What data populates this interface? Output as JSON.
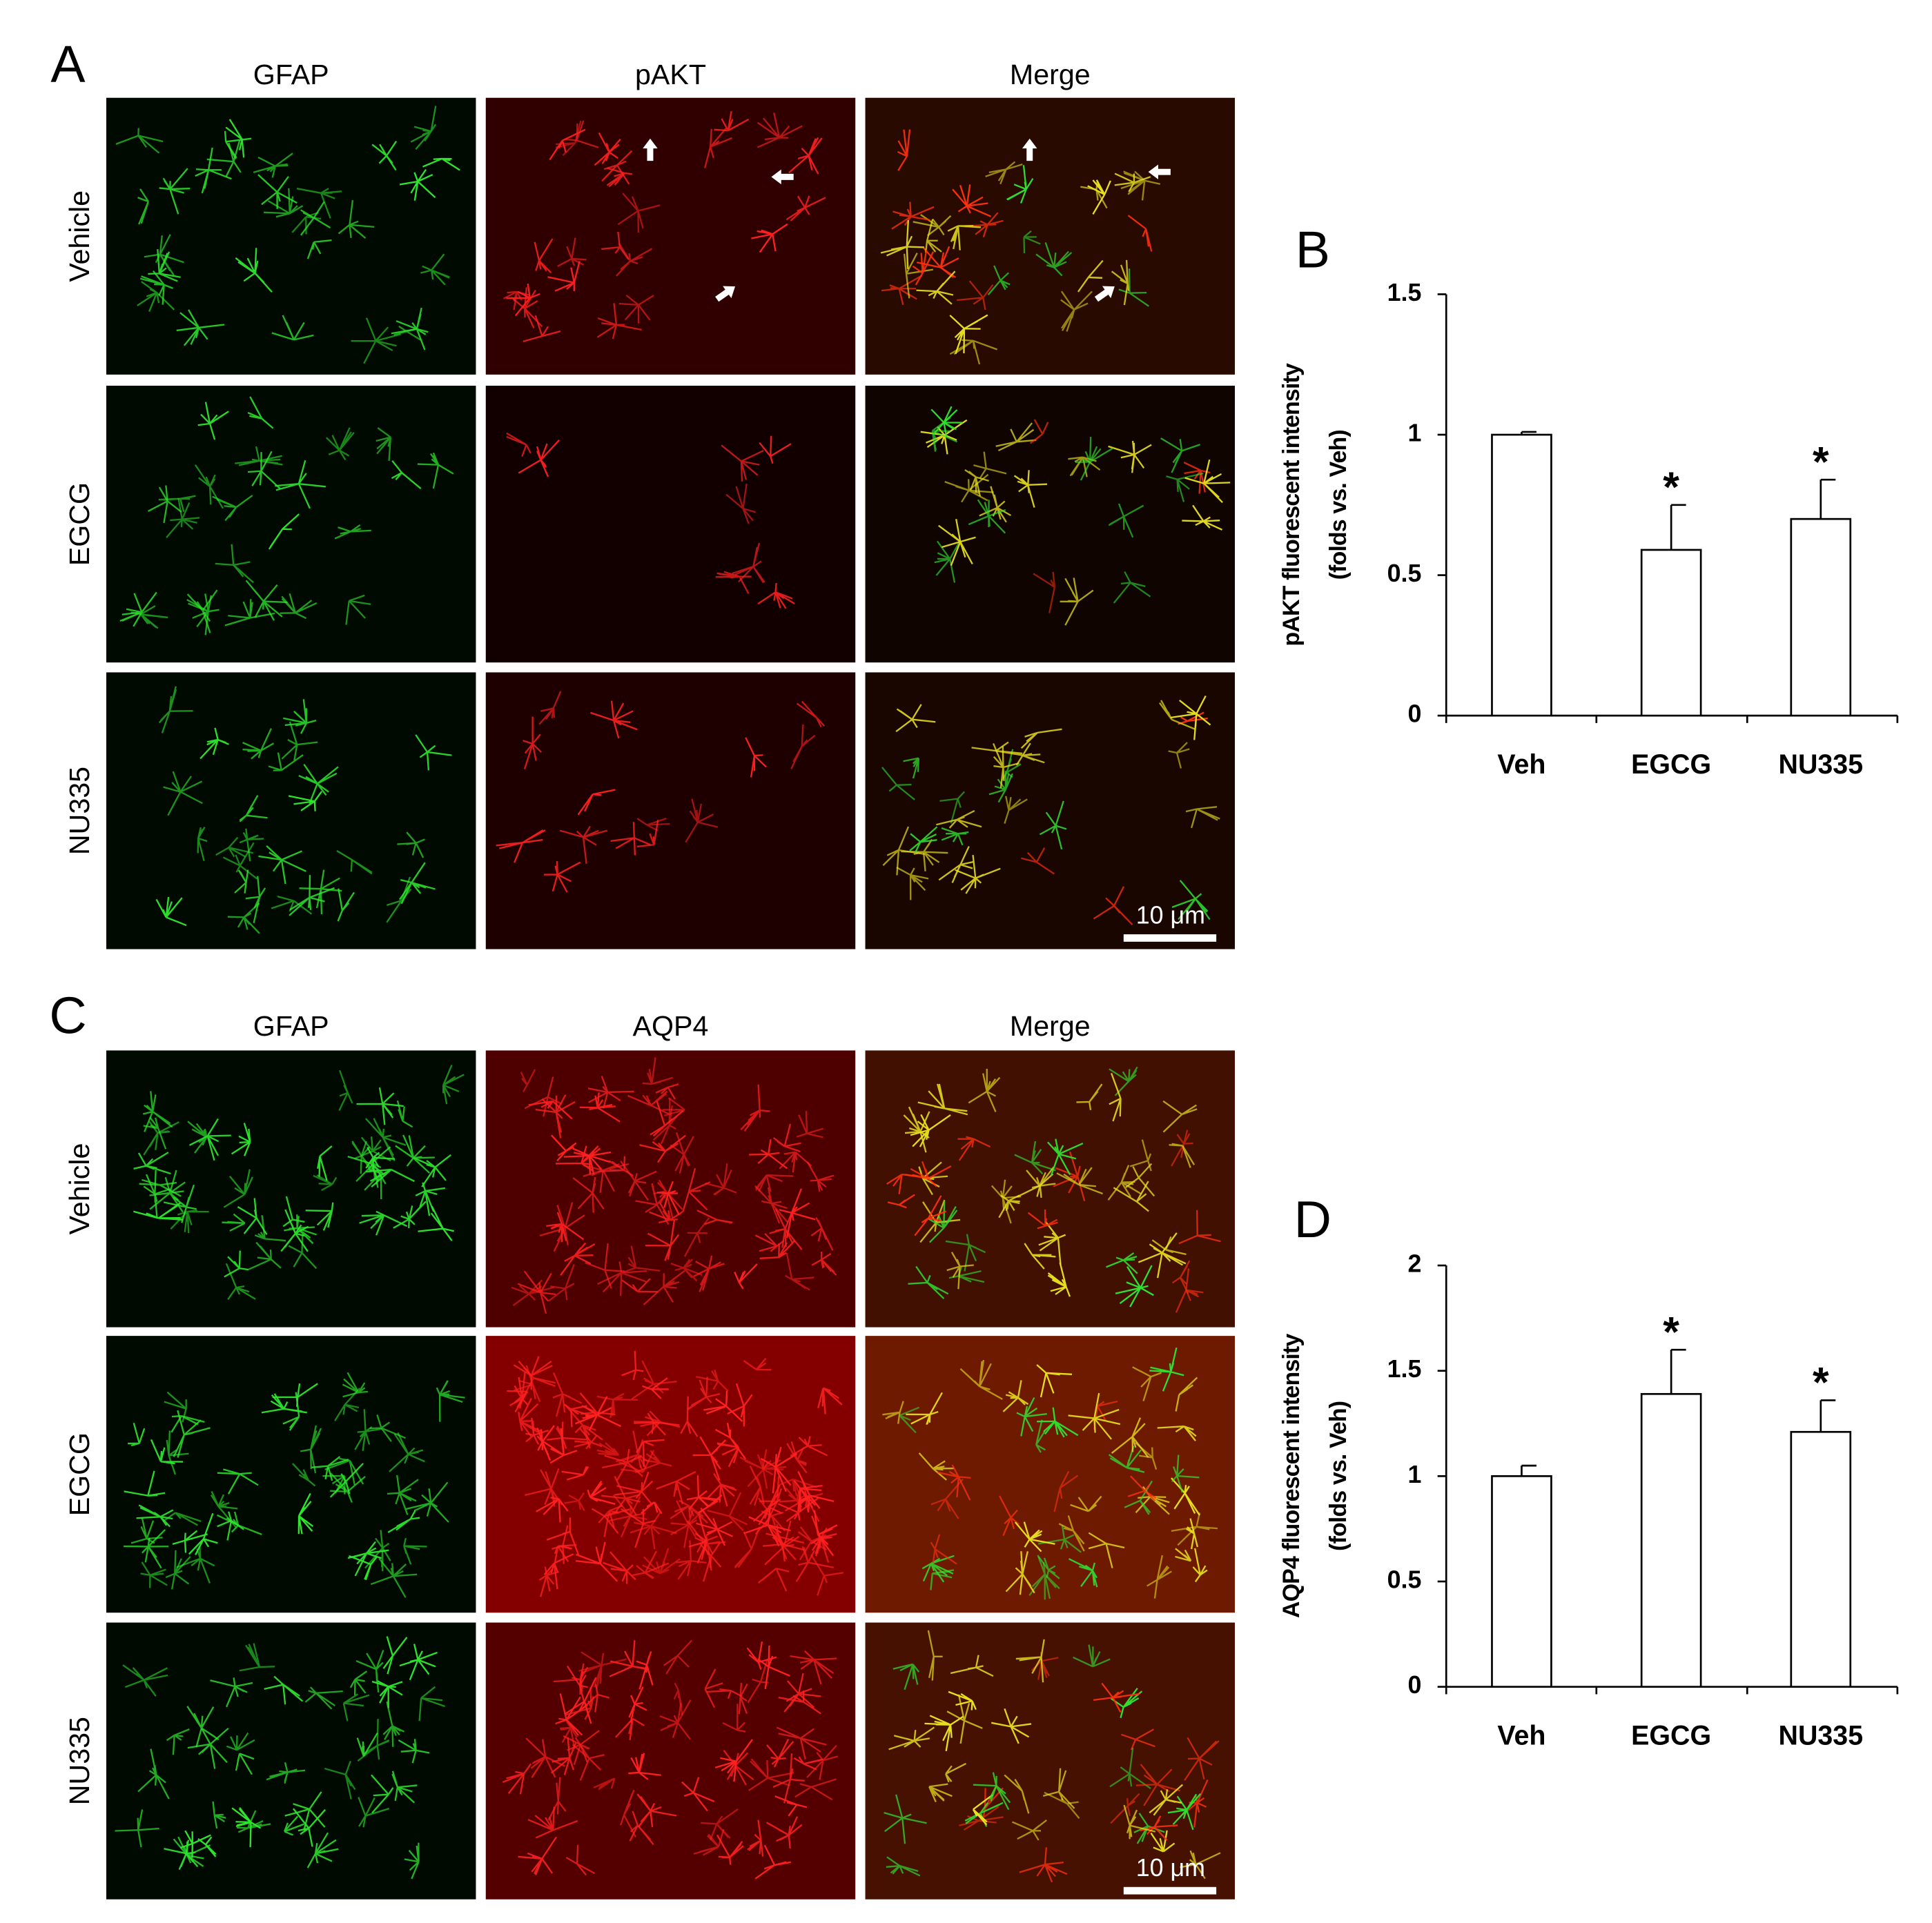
{
  "panels": {
    "A": {
      "label": "A",
      "columns": [
        "GFAP",
        "pAKT",
        "Merge"
      ],
      "rows": [
        "Vehicle",
        "EGCG",
        "NU335"
      ],
      "scale_bar": "10 μm"
    },
    "C": {
      "label": "C",
      "columns": [
        "GFAP",
        "AQP4",
        "Merge"
      ],
      "rows": [
        "Vehicle",
        "EGCG",
        "NU335"
      ],
      "scale_bar": "10 μm"
    }
  },
  "chart_data": [
    {
      "type": "bar",
      "panel_label": "B",
      "y_label": [
        "pAKT fluorescent intensity",
        "(folds vs. Veh)"
      ],
      "categories": [
        "Veh",
        "EGCG",
        "NU335"
      ],
      "values": [
        1,
        0.59,
        0.7
      ],
      "errors": [
        0.01,
        0.16,
        0.14
      ],
      "significance": [
        null,
        "*",
        "*"
      ],
      "color": "#ffffff",
      "ylim": [
        0,
        1.5
      ],
      "yticks": [
        0,
        0.5,
        1,
        1.5
      ]
    },
    {
      "type": "bar",
      "panel_label": "D",
      "y_label": [
        "AQP4 fluorescent intensity",
        "(folds vs. Veh)"
      ],
      "categories": [
        "Veh",
        "EGCG",
        "NU335"
      ],
      "values": [
        1,
        1.39,
        1.21
      ],
      "errors": [
        0.05,
        0.21,
        0.15
      ],
      "significance": [
        null,
        "*",
        "*"
      ],
      "color": "#ffffff",
      "ylim": [
        0,
        2
      ],
      "yticks": [
        0,
        0.5,
        1,
        1.5,
        2
      ]
    }
  ]
}
